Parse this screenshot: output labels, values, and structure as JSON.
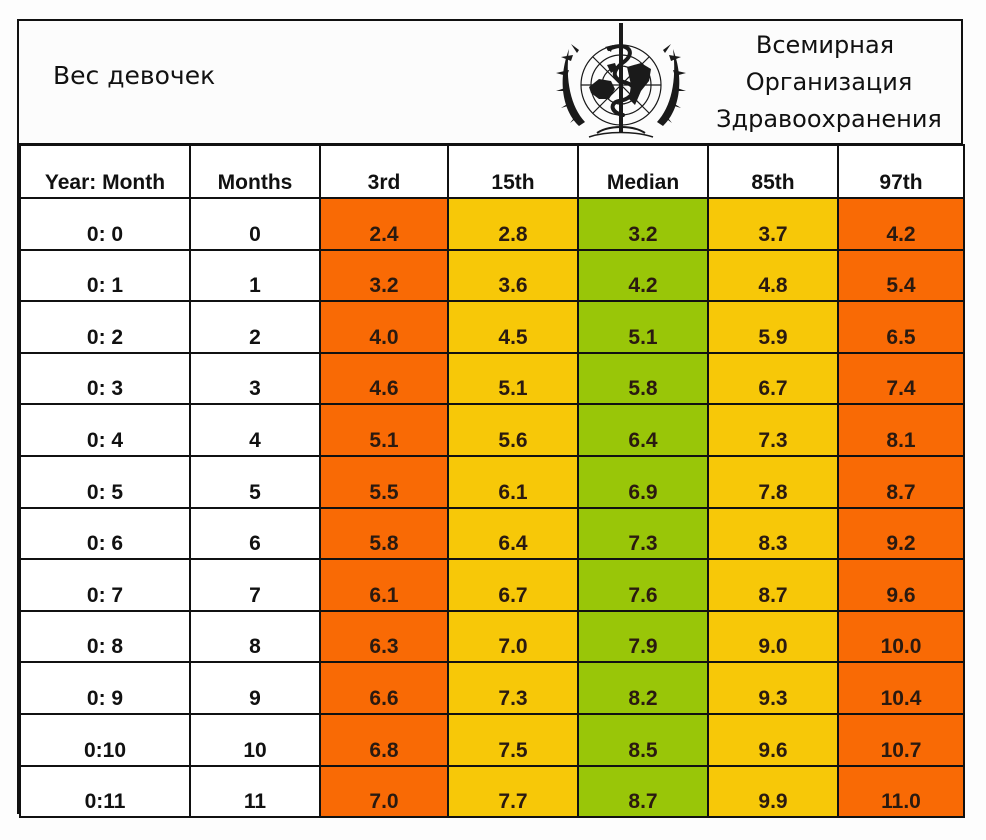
{
  "banner": {
    "title": "Вес девочек",
    "emblem_icon": "who-emblem-icon",
    "org_name_lines": [
      "Всемирная",
      "Организация",
      "Здравоохранения"
    ]
  },
  "table": {
    "headers": [
      "Year: Month",
      "Months",
      "3rd",
      "15th",
      "Median",
      "85th",
      "97th"
    ],
    "column_colors": [
      "#ffffff",
      "#ffffff",
      "#f96a05",
      "#f7c808",
      "#99c608",
      "#f7c808",
      "#f96a05"
    ],
    "rows": [
      {
        "year_month": "0:  0",
        "months": "0",
        "p3": "2.4",
        "p15": "2.8",
        "median": "3.2",
        "p85": "3.7",
        "p97": "4.2"
      },
      {
        "year_month": "0:  1",
        "months": "1",
        "p3": "3.2",
        "p15": "3.6",
        "median": "4.2",
        "p85": "4.8",
        "p97": "5.4"
      },
      {
        "year_month": "0:  2",
        "months": "2",
        "p3": "4.0",
        "p15": "4.5",
        "median": "5.1",
        "p85": "5.9",
        "p97": "6.5"
      },
      {
        "year_month": "0:  3",
        "months": "3",
        "p3": "4.6",
        "p15": "5.1",
        "median": "5.8",
        "p85": "6.7",
        "p97": "7.4"
      },
      {
        "year_month": "0:  4",
        "months": "4",
        "p3": "5.1",
        "p15": "5.6",
        "median": "6.4",
        "p85": "7.3",
        "p97": "8.1"
      },
      {
        "year_month": "0:  5",
        "months": "5",
        "p3": "5.5",
        "p15": "6.1",
        "median": "6.9",
        "p85": "7.8",
        "p97": "8.7"
      },
      {
        "year_month": "0:  6",
        "months": "6",
        "p3": "5.8",
        "p15": "6.4",
        "median": "7.3",
        "p85": "8.3",
        "p97": "9.2"
      },
      {
        "year_month": "0:  7",
        "months": "7",
        "p3": "6.1",
        "p15": "6.7",
        "median": "7.6",
        "p85": "8.7",
        "p97": "9.6"
      },
      {
        "year_month": "0:  8",
        "months": "8",
        "p3": "6.3",
        "p15": "7.0",
        "median": "7.9",
        "p85": "9.0",
        "p97": "10.0"
      },
      {
        "year_month": "0:  9",
        "months": "9",
        "p3": "6.6",
        "p15": "7.3",
        "median": "8.2",
        "p85": "9.3",
        "p97": "10.4"
      },
      {
        "year_month": "0:10",
        "months": "10",
        "p3": "6.8",
        "p15": "7.5",
        "median": "8.5",
        "p85": "9.6",
        "p97": "10.7"
      },
      {
        "year_month": "0:11",
        "months": "11",
        "p3": "7.0",
        "p15": "7.7",
        "median": "8.7",
        "p85": "9.9",
        "p97": "11.0"
      }
    ]
  }
}
